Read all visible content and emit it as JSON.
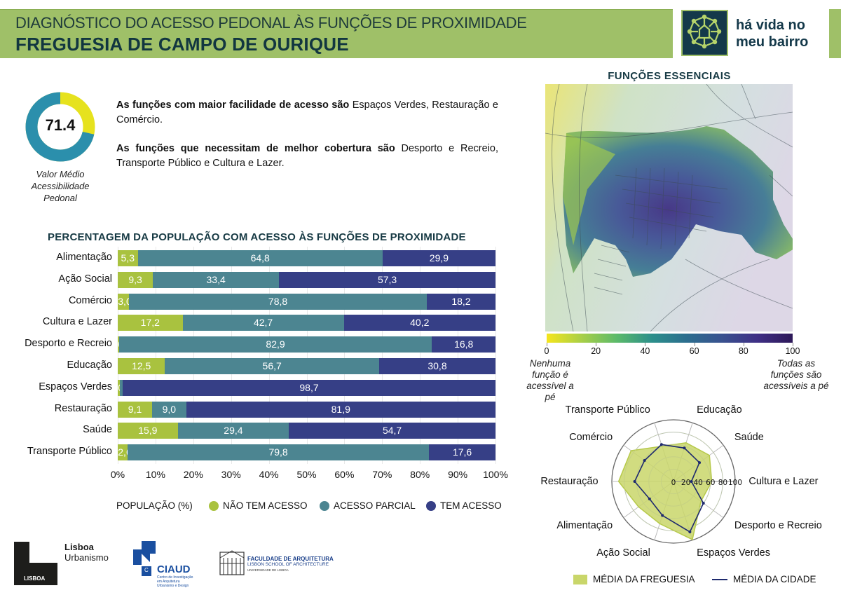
{
  "header": {
    "title": "DIAGNÓSTICO DO ACESSO PEDONAL ÀS FUNÇÕES DE PROXIMIDADE",
    "subtitle": "FREGUESIA DE CAMPO DE OURIQUE",
    "brand_line1": "há vida no",
    "brand_line2": "meu bairro",
    "brand_icon": "neighborhood-network-icon"
  },
  "colors": {
    "header_band": "#9fc068",
    "brand_dark": "#14394a",
    "nao_tem_acesso": "#a9c23f",
    "acesso_parcial": "#4c8591",
    "tem_acesso": "#363f86",
    "donut_fill": "#2b8fac",
    "donut_rest": "#e6e21e",
    "radar_freguesia": "#c9d66a",
    "radar_cidade": "#1e2a6e"
  },
  "summary": {
    "score": "71.4",
    "score_value": 71.4,
    "score_caption": "Valor Médio Acessibilidade Pedonal",
    "best_lead": "As funções com maior facilidade de acesso são",
    "best_list": "Espaços Verdes, Restauração e Comércio.",
    "worst_lead": "As funções que necessitam de melhor cobertura são",
    "worst_list": "Desporto e Recreio, Transporte Público e Cultura e Lazer."
  },
  "chart_data": [
    {
      "type": "bar",
      "orientation": "horizontal-stacked-100",
      "title": "PERCENTAGEM DA POPULAÇÃO COM ACESSO ÀS FUNÇÕES DE PROXIMIDADE",
      "xlabel": "POPULAÇÃO (%)",
      "xlim": [
        0,
        100
      ],
      "xticks": [
        "0%",
        "10%",
        "20%",
        "30%",
        "40%",
        "50%",
        "60%",
        "70%",
        "80%",
        "90%",
        "100%"
      ],
      "legend_position": "bottom",
      "categories": [
        "Alimentação",
        "Ação Social",
        "Comércio",
        "Cultura e Lazer",
        "Desporto e Recreio",
        "Educação",
        "Espaços Verdes",
        "Restauração",
        "Saúde",
        "Transporte Público"
      ],
      "series": [
        {
          "name": "NÃO TEM ACESSO",
          "values": [
            5.3,
            9.3,
            3.0,
            17.2,
            0.3,
            12.5,
            0.5,
            9.1,
            15.9,
            2.6
          ],
          "labels": [
            "5,3",
            "9,3",
            "3,0",
            "17,2",
            "0,3",
            "12,5",
            "0,5",
            "9,1",
            "15,9",
            "2,6"
          ]
        },
        {
          "name": "ACESSO PARCIAL",
          "values": [
            64.8,
            33.4,
            78.8,
            42.7,
            82.9,
            56.7,
            0.8,
            9.0,
            29.4,
            79.8
          ],
          "labels": [
            "64,8",
            "33,4",
            "78,8",
            "42,7",
            "82,9",
            "56,7",
            "0,8",
            "9,0",
            "29,4",
            "79,8"
          ]
        },
        {
          "name": "TEM ACESSO",
          "values": [
            29.9,
            57.3,
            18.2,
            40.2,
            16.8,
            30.8,
            98.7,
            81.9,
            54.7,
            17.6
          ],
          "labels": [
            "29,9",
            "57,3",
            "18,2",
            "40,2",
            "16,8",
            "30,8",
            "98,7",
            "81,9",
            "54,7",
            "17,6"
          ]
        }
      ]
    },
    {
      "type": "heatmap",
      "title": "FUNÇÕES ESSENCIAIS",
      "colorbar": {
        "range": [
          0,
          100
        ],
        "ticks": [
          "0",
          "20",
          "40",
          "60",
          "80",
          "100"
        ],
        "min_caption": "Nenhuma função é acessível a pé",
        "max_caption": "Todas as funções são acessíveis a pé"
      }
    },
    {
      "type": "radar",
      "axes": [
        "Cultura e Lazer",
        "Desporto e Recreio",
        "Espaços Verdes",
        "Ação Social",
        "Alimentação",
        "Restauração",
        "Comércio",
        "Transporte Público",
        "Educação",
        "Saúde"
      ],
      "rlim": [
        0,
        100
      ],
      "rticks": [
        "0",
        "20",
        "40",
        "60",
        "80",
        "100"
      ],
      "legend_position": "bottom",
      "series": [
        {
          "name": "MÉDIA DA FREGUESIA",
          "values": [
            62,
            55,
            99,
            72,
            70,
            89,
            85,
            60,
            66,
            72
          ]
        },
        {
          "name": "MÉDIA DA CIDADE",
          "values": [
            29,
            60,
            86,
            58,
            48,
            63,
            58,
            63,
            57,
            52
          ]
        }
      ]
    }
  ],
  "legend": {
    "population_label": "POPULAÇÃO (%)",
    "nao": "NÃO TEM ACESSO",
    "parcial": "ACESSO PARCIAL",
    "tem": "TEM ACESSO",
    "freguesia": "MÉDIA DA FREGUESIA",
    "cidade": "MÉDIA DA CIDADE"
  },
  "footer": {
    "lisboa_mark": "LISBOA",
    "lu_line1": "Lisboa",
    "lu_line2": "Urbanismo",
    "ciaud_title": "CIAUD",
    "ciaud_letter": "C",
    "ciaud_sub1": "Centro de Investigação",
    "ciaud_sub2": "em Arquitetura",
    "ciaud_sub3": "Urbanismo e Design",
    "fa_line1": "FACULDADE DE ARQUITETURA",
    "fa_line2": "LISBON SCHOOL OF ARCHITECTURE",
    "fa_line3": "UNIVERSIDADE DE LISBOA"
  }
}
